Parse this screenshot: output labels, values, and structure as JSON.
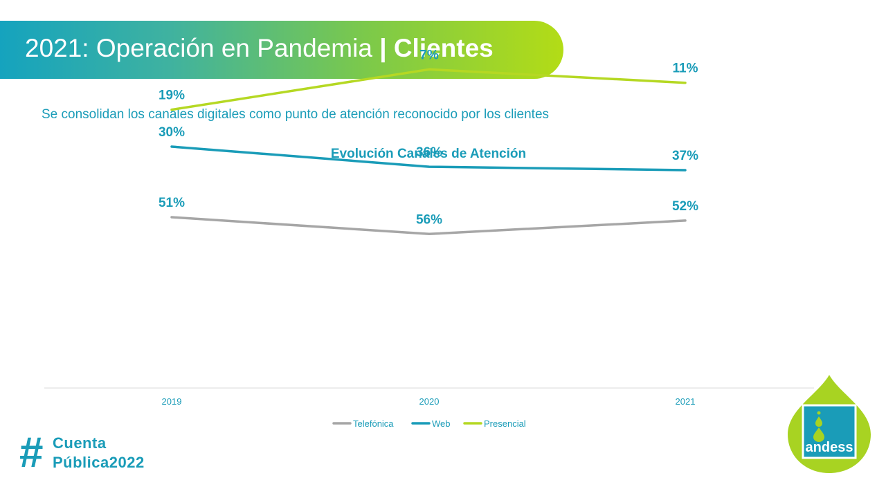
{
  "header": {
    "title_main": "2021: Operación en Pandemia ",
    "title_sep": "| ",
    "title_bold": "Clientes"
  },
  "subtitle": "Se consolidan los canales digitales como punto de atención reconocido por los clientes",
  "chart_data": {
    "type": "line",
    "title": "Evolución Canales de Atención",
    "categories": [
      "2019",
      "2020",
      "2021"
    ],
    "series": [
      {
        "name": "Telefónica",
        "values": [
          51,
          56,
          52
        ],
        "labels": [
          "51%",
          "56%",
          "52%"
        ],
        "color": "#a6a6a6"
      },
      {
        "name": "Web",
        "values": [
          30,
          36,
          37
        ],
        "labels": [
          "30%",
          "36%",
          "37%"
        ],
        "color": "#1a9cb8"
      },
      {
        "name": "Presencial",
        "values": [
          19,
          7,
          11
        ],
        "labels": [
          "19%",
          "7%",
          "11%"
        ],
        "color": "#b5d823"
      }
    ],
    "grid": false,
    "legend": "bottom",
    "label_color": "#1a9cb8"
  },
  "brand": {
    "hash": "#",
    "line1": "Cuenta",
    "line2": "Pública2022"
  },
  "logo": {
    "text": "andess",
    "icon": "water-drop-logo-icon",
    "color": "#a8d322"
  }
}
